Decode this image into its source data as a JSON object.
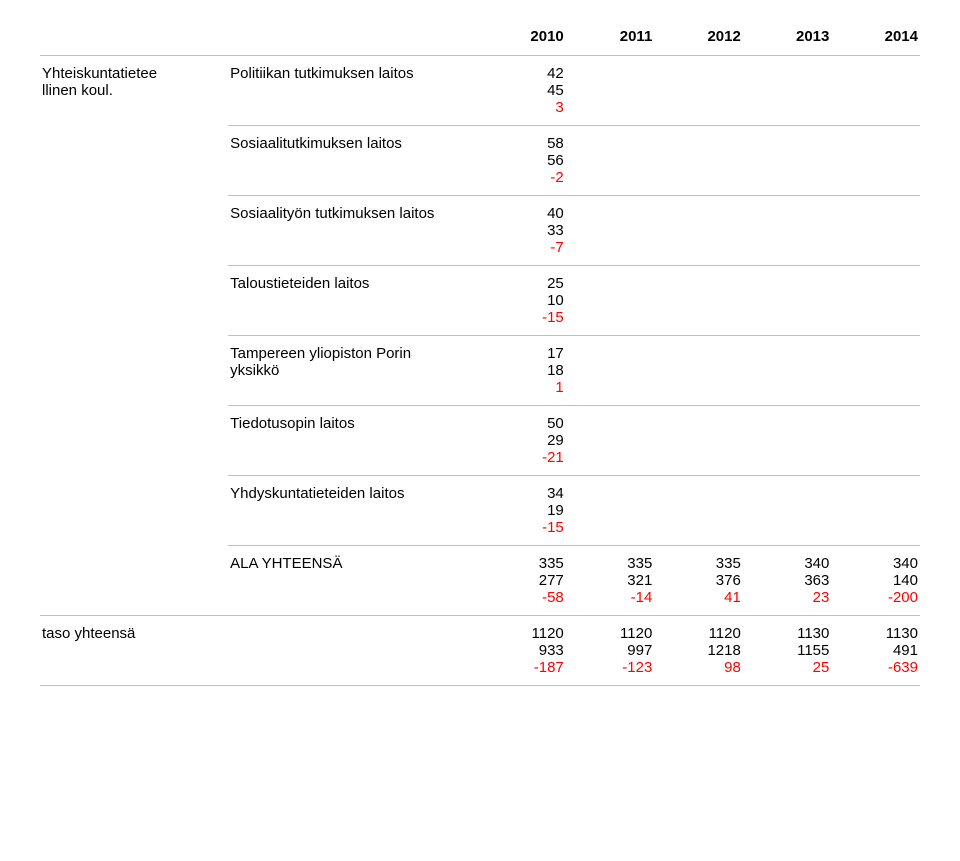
{
  "colors": {
    "text": "#000000",
    "diff": "#ff0000",
    "rule": "#bfbfbf",
    "background": "#ffffff"
  },
  "typography": {
    "font_family": "Arial",
    "header_fontsize_pt": 11,
    "body_fontsize_pt": 11,
    "header_weight": "bold"
  },
  "years": [
    "2010",
    "2011",
    "2012",
    "2013",
    "2014"
  ],
  "left_group": {
    "line1": "Yhteiskuntatietee",
    "line2": "llinen koul."
  },
  "rows": [
    {
      "label": "Politiikan tutkimuksen laitos",
      "v1": "42",
      "v2": "45",
      "d": "3"
    },
    {
      "label": "Sosiaalitutkimuksen laitos",
      "v1": "58",
      "v2": "56",
      "d": "-2"
    },
    {
      "label": "Sosiaalityön tutkimuksen laitos",
      "v1": "40",
      "v2": "33",
      "d": "-7"
    },
    {
      "label": "Taloustieteiden laitos",
      "v1": "25",
      "v2": "10",
      "d": "-15"
    },
    {
      "label": "Tampereen yliopiston Porin yksikkö",
      "label_l1": "Tampereen yliopiston Porin",
      "label_l2": "yksikkö",
      "v1": "17",
      "v2": "18",
      "d": "1"
    },
    {
      "label": "Tiedotusopin laitos",
      "v1": "50",
      "v2": "29",
      "d": "-21"
    },
    {
      "label": "Yhdyskuntatieteiden laitos",
      "v1": "34",
      "v2": "19",
      "d": "-15"
    }
  ],
  "subtotal": {
    "label": "ALA YHTEENSÄ",
    "cols": [
      {
        "v1": "335",
        "v2": "277",
        "d": "-58"
      },
      {
        "v1": "335",
        "v2": "321",
        "d": "-14"
      },
      {
        "v1": "335",
        "v2": "376",
        "d": "41"
      },
      {
        "v1": "340",
        "v2": "363",
        "d": "23"
      },
      {
        "v1": "340",
        "v2": "140",
        "d": "-200"
      }
    ]
  },
  "grand": {
    "label": "taso yhteensä",
    "cols": [
      {
        "v1": "1120",
        "v2": "933",
        "d": "-187"
      },
      {
        "v1": "1120",
        "v2": "997",
        "d": "-123"
      },
      {
        "v1": "1120",
        "v2": "1218",
        "d": "98"
      },
      {
        "v1": "1130",
        "v2": "1155",
        "d": "25"
      },
      {
        "v1": "1130",
        "v2": "491",
        "d": "-639"
      }
    ]
  }
}
